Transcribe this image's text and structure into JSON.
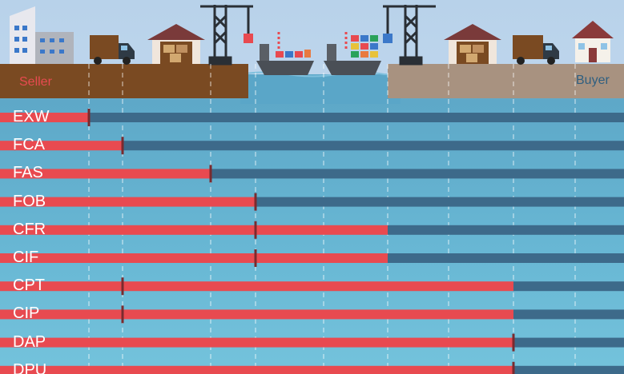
{
  "parties": {
    "seller": "Seller",
    "buyer": "Buyer"
  },
  "colors": {
    "seller_bar": "#e84a50",
    "buyer_bar": "#3d6a8a",
    "transfer_mark": "#7a2a2e",
    "seller_ground": "#7a4a22",
    "buyer_ground": "#a89280",
    "sea": "#5aa6c8"
  },
  "icons": [
    "office-building-icon",
    "truck-icon",
    "warehouse-icon",
    "port-crane-icon",
    "container-ship-icon",
    "house-icon"
  ],
  "chart_data": {
    "type": "table",
    "stages": [
      "seller-premises",
      "export-carrier",
      "export-warehouse",
      "export-quay",
      "on-board-origin",
      "on-board-destination",
      "import-warehouse",
      "import-carrier",
      "buyer-premises"
    ],
    "terms": [
      {
        "code": "EXW",
        "risk_transfer_stage": 0,
        "cost_stage": 0
      },
      {
        "code": "FCA",
        "risk_transfer_stage": 1,
        "cost_stage": 1
      },
      {
        "code": "FAS",
        "risk_transfer_stage": 2,
        "cost_stage": 2
      },
      {
        "code": "FOB",
        "risk_transfer_stage": 3,
        "cost_stage": 3
      },
      {
        "code": "CFR",
        "risk_transfer_stage": 3,
        "cost_stage": 5
      },
      {
        "code": "CIF",
        "risk_transfer_stage": 3,
        "cost_stage": 5
      },
      {
        "code": "CPT",
        "risk_transfer_stage": 1,
        "cost_stage": 7
      },
      {
        "code": "CIP",
        "risk_transfer_stage": 1,
        "cost_stage": 7
      },
      {
        "code": "DAP",
        "risk_transfer_stage": 7,
        "cost_stage": 7
      },
      {
        "code": "DPU",
        "risk_transfer_stage": 7,
        "cost_stage": 7
      }
    ]
  }
}
